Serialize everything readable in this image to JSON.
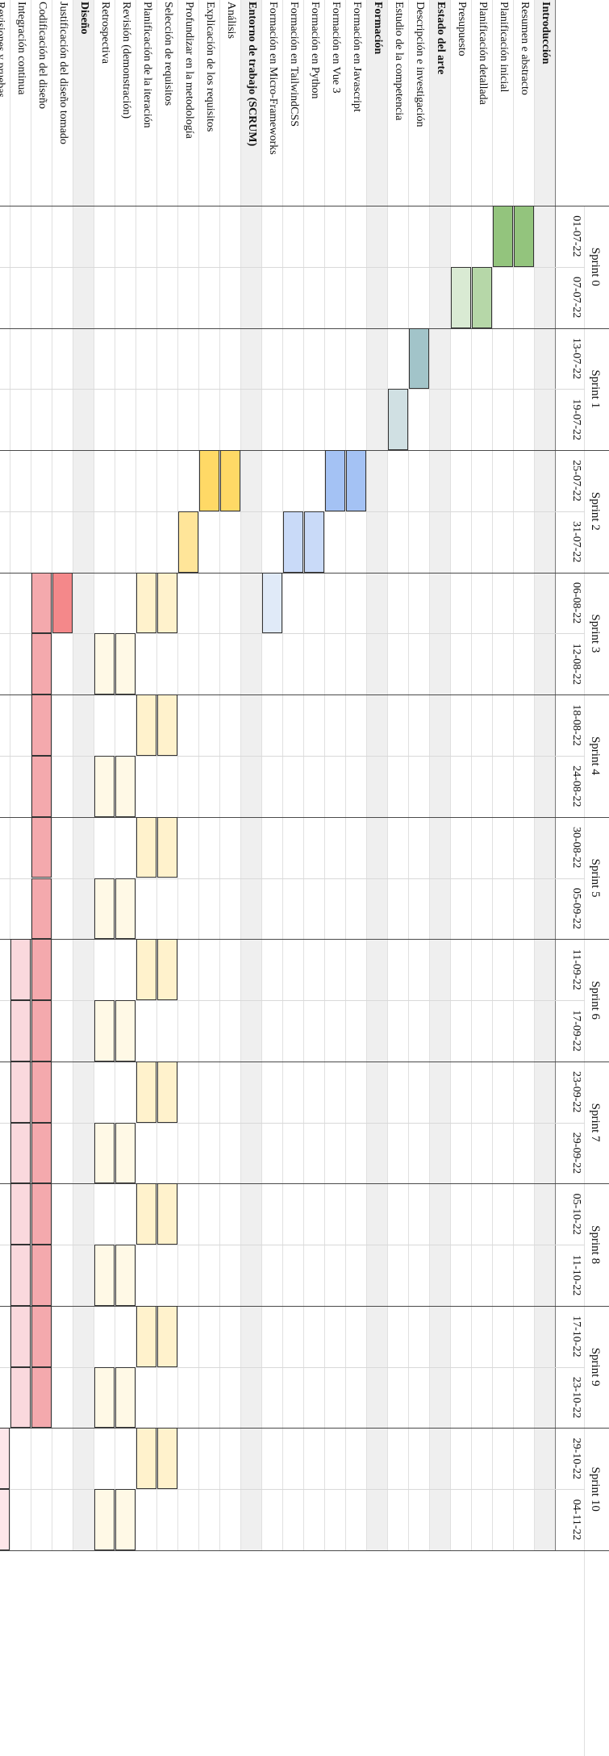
{
  "sprints": [
    {
      "label": "Sprint 0",
      "dates": [
        "01-07-22",
        "07-07-22"
      ]
    },
    {
      "label": "Sprint 1",
      "dates": [
        "13-07-22",
        "19-07-22"
      ]
    },
    {
      "label": "Sprint 2",
      "dates": [
        "25-07-22",
        "31-07-22"
      ]
    },
    {
      "label": "Sprint 3",
      "dates": [
        "06-08-22",
        "12-08-22"
      ]
    },
    {
      "label": "Sprint 4",
      "dates": [
        "18-08-22",
        "24-08-22"
      ]
    },
    {
      "label": "Sprint 5",
      "dates": [
        "30-08-22",
        "05-09-22"
      ]
    },
    {
      "label": "Sprint 6",
      "dates": [
        "11-09-22",
        "17-09-22"
      ]
    },
    {
      "label": "Sprint 7",
      "dates": [
        "23-09-22",
        "29-09-22"
      ]
    },
    {
      "label": "Sprint 8",
      "dates": [
        "05-10-22",
        "11-10-22"
      ]
    },
    {
      "label": "Sprint 9",
      "dates": [
        "17-10-22",
        "23-10-22"
      ]
    },
    {
      "label": "Sprint 10",
      "dates": [
        "29-10-22",
        "04-11-22"
      ]
    }
  ],
  "tasks": [
    {
      "label": "Introducción",
      "section": true,
      "bars": []
    },
    {
      "label": "Resumen e abstracto",
      "section": false,
      "color": "#93c47d",
      "bars": [
        0
      ]
    },
    {
      "label": "Planificación inicial",
      "section": false,
      "color": "#93c47d",
      "bars": [
        0
      ]
    },
    {
      "label": "Planificación detallada",
      "section": false,
      "color": "#b6d7a8",
      "bars": [
        1
      ]
    },
    {
      "label": "Presupuesto",
      "section": false,
      "color": "#d9ead3",
      "bars": [
        1
      ]
    },
    {
      "label": "Estado del arte",
      "section": true,
      "bars": []
    },
    {
      "label": "Descripción e investigación",
      "section": false,
      "color": "#a2c4c9",
      "bars": [
        2
      ]
    },
    {
      "label": "Estudio de la competencia",
      "section": false,
      "color": "#d0e0e3",
      "bars": [
        3
      ]
    },
    {
      "label": "Formación",
      "section": true,
      "bars": []
    },
    {
      "label": "Formación en Javascript",
      "section": false,
      "color": "#a4c2f4",
      "bars": [
        4
      ]
    },
    {
      "label": "Formación en Vue 3",
      "section": false,
      "color": "#a4c2f4",
      "bars": [
        4
      ]
    },
    {
      "label": "Formación en Python",
      "section": false,
      "color": "#c9daf8",
      "bars": [
        5
      ]
    },
    {
      "label": "Formación en TailwindCSS",
      "section": false,
      "color": "#c9daf8",
      "bars": [
        5
      ]
    },
    {
      "label": "Formación en Micro-Frameworks",
      "section": false,
      "color": "#e0eaf8",
      "bars": [
        6
      ]
    },
    {
      "label": "Entorno de trabajo (SCRUM)",
      "section": true,
      "bars": []
    },
    {
      "label": "Análisis",
      "section": false,
      "color": "#ffd966",
      "bars": [
        4
      ]
    },
    {
      "label": "Explicación de los requisitos",
      "section": false,
      "color": "#ffd966",
      "bars": [
        4
      ]
    },
    {
      "label": "Profundizar en la metodología",
      "section": false,
      "color": "#ffe599",
      "bars": [
        5
      ]
    },
    {
      "label": "Selección de requisitos",
      "section": false,
      "color": "#fff2cc",
      "bars": [
        6,
        8,
        10,
        12,
        14,
        16,
        18,
        20
      ]
    },
    {
      "label": "Planificación de la iteración",
      "section": false,
      "color": "#fff2cc",
      "bars": [
        6,
        8,
        10,
        12,
        14,
        16,
        18,
        20
      ]
    },
    {
      "label": "Revisión (demonstración)",
      "section": false,
      "color": "#fff9e6",
      "bars": [
        7,
        9,
        11,
        13,
        15,
        17,
        19,
        21
      ]
    },
    {
      "label": "Retrospectiva",
      "section": false,
      "color": "#fff9e6",
      "bars": [
        7,
        9,
        11,
        13,
        15,
        17,
        19,
        21
      ]
    },
    {
      "label": "Diseño",
      "section": true,
      "bars": []
    },
    {
      "label": "Justificación del diseño tomado",
      "section": false,
      "color": "#f4888a",
      "bars": [
        6
      ]
    },
    {
      "label": "Codificación del diseño",
      "section": false,
      "color": "#f4a9ad",
      "bars": [
        6,
        7,
        8,
        9,
        10,
        11,
        12,
        13,
        14,
        15,
        16,
        17,
        18,
        19
      ]
    },
    {
      "label": "Integración continua",
      "section": false,
      "color": "#fad9dd",
      "bars": [
        12,
        13,
        14,
        15,
        16,
        17,
        18,
        19
      ]
    },
    {
      "label": "Revisiones y pruebas",
      "section": false,
      "color": "#fde6e9",
      "bars": [
        20,
        21
      ]
    }
  ]
}
